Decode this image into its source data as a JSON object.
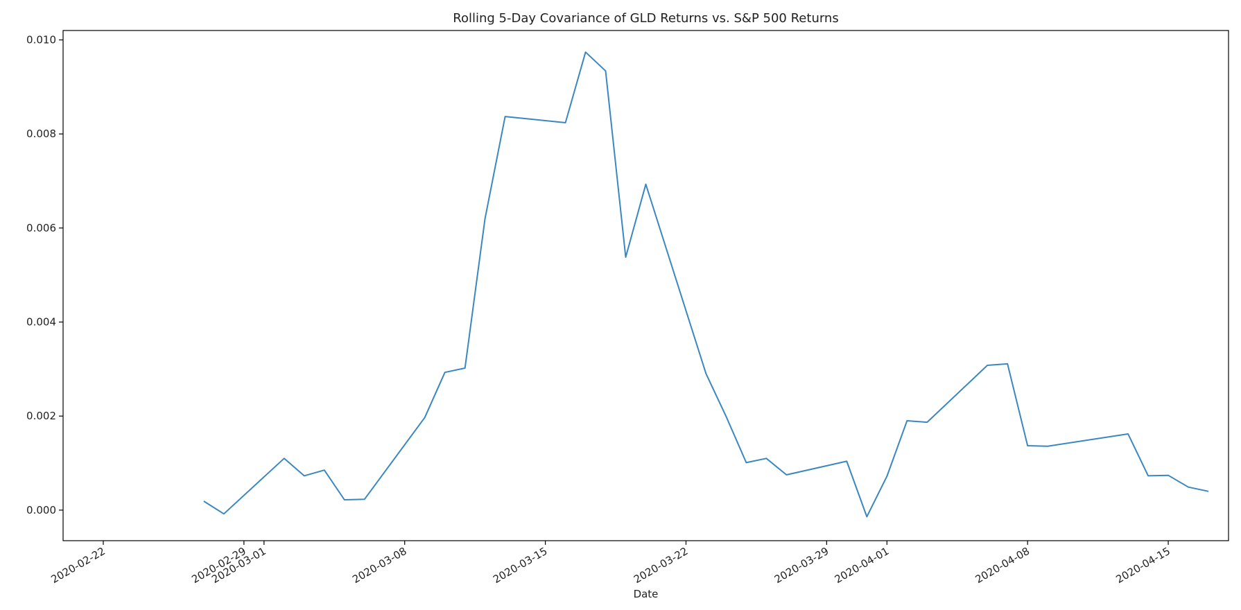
{
  "chart_data": {
    "type": "line",
    "title": "Rolling 5-Day Covariance of GLD Returns vs. S&P 500 Returns",
    "xlabel": "Date",
    "ylabel": "",
    "xlim": [
      "2020-02-20",
      "2020-04-18"
    ],
    "ylim": [
      -0.00065,
      0.0102
    ],
    "grid": false,
    "legend": "none",
    "colors": {
      "line": "#3a87c0",
      "axes": "#000000",
      "text": "#222222"
    },
    "y_ticks": [
      {
        "value": 0.0,
        "label": "0.000"
      },
      {
        "value": 0.002,
        "label": "0.002"
      },
      {
        "value": 0.004,
        "label": "0.004"
      },
      {
        "value": 0.006,
        "label": "0.006"
      },
      {
        "value": 0.008,
        "label": "0.008"
      },
      {
        "value": 0.01,
        "label": "0.010"
      }
    ],
    "x_ticks": [
      {
        "value": "2020-02-22",
        "label": "2020-02-22"
      },
      {
        "value": "2020-02-29",
        "label": "2020-02-29"
      },
      {
        "value": "2020-03-01",
        "label": "2020-03-01"
      },
      {
        "value": "2020-03-08",
        "label": "2020-03-08"
      },
      {
        "value": "2020-03-15",
        "label": "2020-03-15"
      },
      {
        "value": "2020-03-22",
        "label": "2020-03-22"
      },
      {
        "value": "2020-03-29",
        "label": "2020-03-29"
      },
      {
        "value": "2020-04-01",
        "label": "2020-04-01"
      },
      {
        "value": "2020-04-08",
        "label": "2020-04-08"
      },
      {
        "value": "2020-04-15",
        "label": "2020-04-15"
      }
    ],
    "series": [
      {
        "x": [
          "2020-02-27",
          "2020-02-28",
          "2020-03-02",
          "2020-03-03",
          "2020-03-04",
          "2020-03-05",
          "2020-03-06",
          "2020-03-09",
          "2020-03-10",
          "2020-03-11",
          "2020-03-12",
          "2020-03-13",
          "2020-03-16",
          "2020-03-17",
          "2020-03-18",
          "2020-03-19",
          "2020-03-20",
          "2020-03-23",
          "2020-03-24",
          "2020-03-25",
          "2020-03-26",
          "2020-03-27",
          "2020-03-30",
          "2020-03-31",
          "2020-04-01",
          "2020-04-02",
          "2020-04-03",
          "2020-04-06",
          "2020-04-07",
          "2020-04-08",
          "2020-04-09",
          "2020-04-13",
          "2020-04-14",
          "2020-04-15",
          "2020-04-16",
          "2020-04-17"
        ],
        "values": [
          0.00019,
          -8e-05,
          0.0011,
          0.00073,
          0.00085,
          0.00022,
          0.00023,
          0.00197,
          0.00293,
          0.00302,
          0.0062,
          0.00837,
          0.00824,
          0.00974,
          0.00934,
          0.00538,
          0.00693,
          0.0029,
          0.00199,
          0.00101,
          0.0011,
          0.00075,
          0.00104,
          -0.00014,
          0.00072,
          0.0019,
          0.00187,
          0.00308,
          0.00311,
          0.00137,
          0.00136,
          0.00162,
          0.00073,
          0.00074,
          0.00049,
          0.0004
        ]
      }
    ]
  }
}
